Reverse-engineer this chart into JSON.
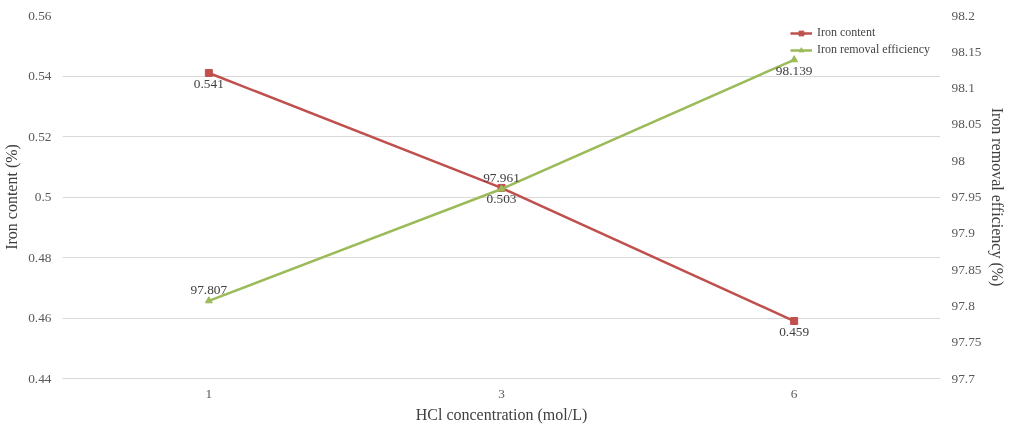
{
  "chart_data": {
    "type": "line",
    "xlabel": "HCl concentration (mol/L)",
    "ylabel": "Iron content (%)",
    "y2label": "Iron removal efficiency (%)",
    "categories": [
      "1",
      "3",
      "6"
    ],
    "series": [
      {
        "name": "Iron content",
        "color": "#c0504d",
        "values": [
          0.541,
          0.503,
          0.459
        ],
        "marker": "square"
      },
      {
        "name": "Iron removal efficiency",
        "color": "#9bbb59",
        "values": [
          97.807,
          97.961,
          98.139
        ],
        "marker": "triangle",
        "axis": "y2"
      }
    ],
    "ylim": [
      0.44,
      0.56
    ],
    "yticks": [
      0.44,
      0.46,
      0.48,
      0.5,
      0.52,
      0.54,
      0.56
    ],
    "y2lim": [
      97.7,
      98.2
    ],
    "y2ticks": [
      97.7,
      97.75,
      97.8,
      97.85,
      97.9,
      97.95,
      98,
      98.05,
      98.1,
      98.15,
      98.2
    ],
    "grid": "y",
    "legend": "top right",
    "data_labels": true,
    "line_style": "solid"
  }
}
